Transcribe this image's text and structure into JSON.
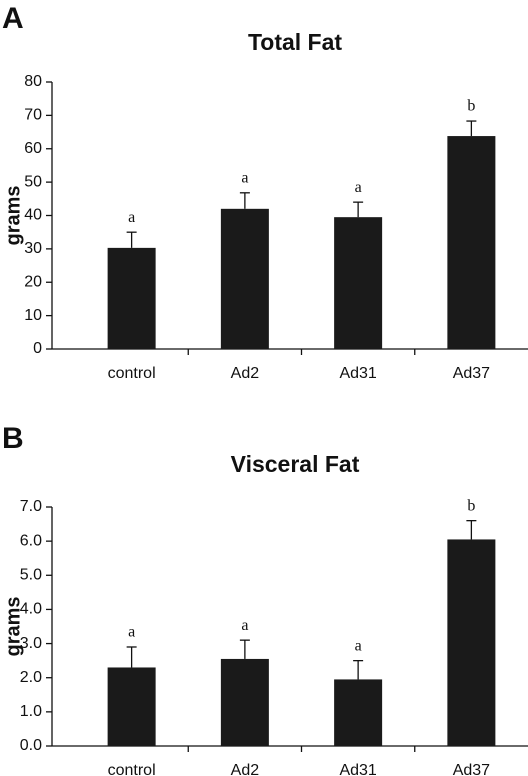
{
  "chart_data": [
    {
      "type": "bar",
      "panel_label": "A",
      "title": "Total Fat",
      "y_label": "grams",
      "categories": [
        "control",
        "Ad2",
        "Ad31",
        "Ad37"
      ],
      "values": [
        30.3,
        42,
        39.5,
        63.8
      ],
      "errors": [
        4.7,
        4.8,
        4.5,
        4.5
      ],
      "annotations": [
        "a",
        "a",
        "a",
        "b"
      ],
      "color": "#1a1a1a",
      "ylim": [
        0,
        80
      ],
      "yticks": [
        0,
        10,
        20,
        30,
        40,
        50,
        60,
        70,
        80
      ]
    },
    {
      "type": "bar",
      "panel_label": "B",
      "title": "Visceral Fat",
      "y_label": "grams",
      "categories": [
        "control",
        "Ad2",
        "Ad31",
        "Ad37"
      ],
      "values": [
        2.3,
        2.55,
        1.95,
        6.05
      ],
      "errors": [
        0.6,
        0.55,
        0.55,
        0.55
      ],
      "annotations": [
        "a",
        "a",
        "a",
        "b"
      ],
      "color": "#1a1a1a",
      "ylim": [
        0,
        7
      ],
      "yticks": [
        {
          "value": 0,
          "label": "0.0"
        },
        {
          "value": 1,
          "label": "1.0"
        },
        {
          "value": 2,
          "label": "2.0"
        },
        {
          "value": 3,
          "label": "3.0"
        },
        {
          "value": 4,
          "label": "4.0"
        },
        {
          "value": 5,
          "label": "5.0"
        },
        {
          "value": 6,
          "label": "6.0"
        },
        {
          "value": 7,
          "label": "7.0"
        }
      ]
    }
  ]
}
